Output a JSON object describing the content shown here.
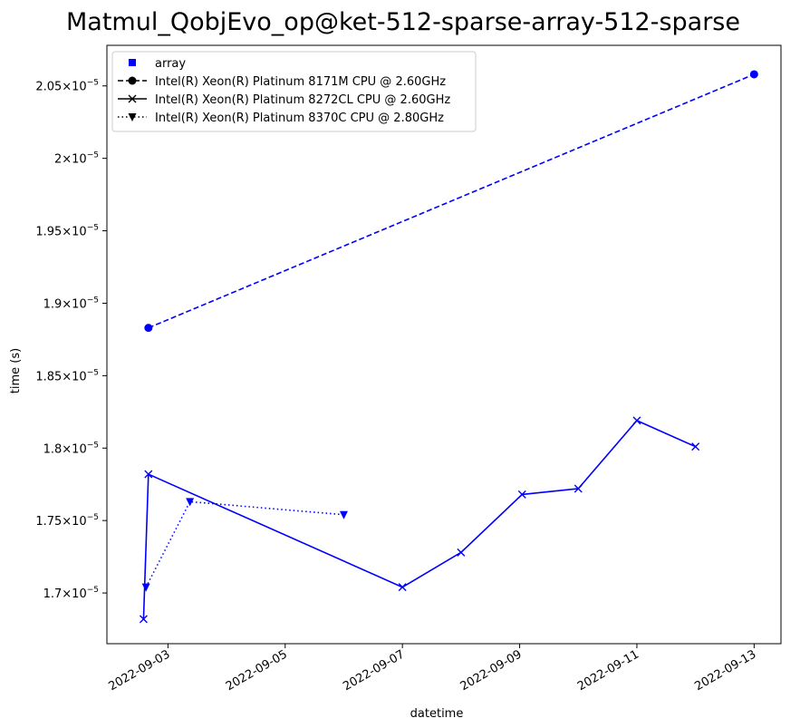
{
  "chart_data": {
    "type": "line",
    "title": "Matmul_QobjEvo_op@ket-512-sparse-array-512-sparse",
    "xlabel": "datetime",
    "ylabel": "time (s)",
    "xlim": [
      "2022-09-01T23:00",
      "2022-09-13T11:00"
    ],
    "ylim": [
      1.665e-05,
      2.078e-05
    ],
    "x_ticks": [
      "2022-09-03",
      "2022-09-05",
      "2022-09-07",
      "2022-09-09",
      "2022-09-11",
      "2022-09-13"
    ],
    "y_ticks": [
      {
        "value": 1.7e-05,
        "mantissa": "1.7",
        "exponent": "−5"
      },
      {
        "value": 1.75e-05,
        "mantissa": "1.75",
        "exponent": "−5"
      },
      {
        "value": 1.8e-05,
        "mantissa": "1.8",
        "exponent": "−5"
      },
      {
        "value": 1.85e-05,
        "mantissa": "1.85",
        "exponent": "−5"
      },
      {
        "value": 1.9e-05,
        "mantissa": "1.9",
        "exponent": "−5"
      },
      {
        "value": 1.95e-05,
        "mantissa": "1.95",
        "exponent": "−5"
      },
      {
        "value": 2e-05,
        "mantissa": "2",
        "exponent": "−5"
      },
      {
        "value": 2.05e-05,
        "mantissa": "2.05",
        "exponent": "−5"
      }
    ],
    "tick_sep": "×10",
    "grid": false,
    "legend": {
      "placement": "top-left",
      "entries": [
        {
          "label": "array",
          "marker": "square",
          "line": "none"
        },
        {
          "label": "Intel(R) Xeon(R) Platinum 8171M CPU @ 2.60GHz",
          "marker": "circle",
          "line": "dashed"
        },
        {
          "label": "Intel(R) Xeon(R) Platinum 8272CL CPU @ 2.60GHz",
          "marker": "x",
          "line": "solid"
        },
        {
          "label": "Intel(R) Xeon(R) Platinum 8370C CPU @ 2.80GHz",
          "marker": "triangle-down",
          "line": "dotted"
        }
      ]
    },
    "color": "#0000ff",
    "series": [
      {
        "name": "Intel(R) Xeon(R) Platinum 8171M CPU @ 2.60GHz",
        "marker": "circle",
        "line": "dashed",
        "x": [
          "2022-09-02T16:00",
          "2022-09-13T00:00"
        ],
        "y": [
          1.883e-05,
          2.058e-05
        ]
      },
      {
        "name": "Intel(R) Xeon(R) Platinum 8272CL CPU @ 2.60GHz",
        "marker": "x",
        "line": "solid",
        "x": [
          "2022-09-02T14:00",
          "2022-09-02T16:00",
          "2022-09-07T00:00",
          "2022-09-08T00:00",
          "2022-09-09T01:00",
          "2022-09-10T00:00",
          "2022-09-11T00:00",
          "2022-09-12T00:00"
        ],
        "y": [
          1.682e-05,
          1.782e-05,
          1.704e-05,
          1.728e-05,
          1.768e-05,
          1.772e-05,
          1.819e-05,
          1.801e-05
        ]
      },
      {
        "name": "Intel(R) Xeon(R) Platinum 8370C CPU @ 2.80GHz",
        "marker": "triangle-down",
        "line": "dotted",
        "x": [
          "2022-09-02T15:00",
          "2022-09-03T09:00",
          "2022-09-06T00:00"
        ],
        "y": [
          1.704e-05,
          1.763e-05,
          1.754e-05
        ]
      }
    ]
  }
}
